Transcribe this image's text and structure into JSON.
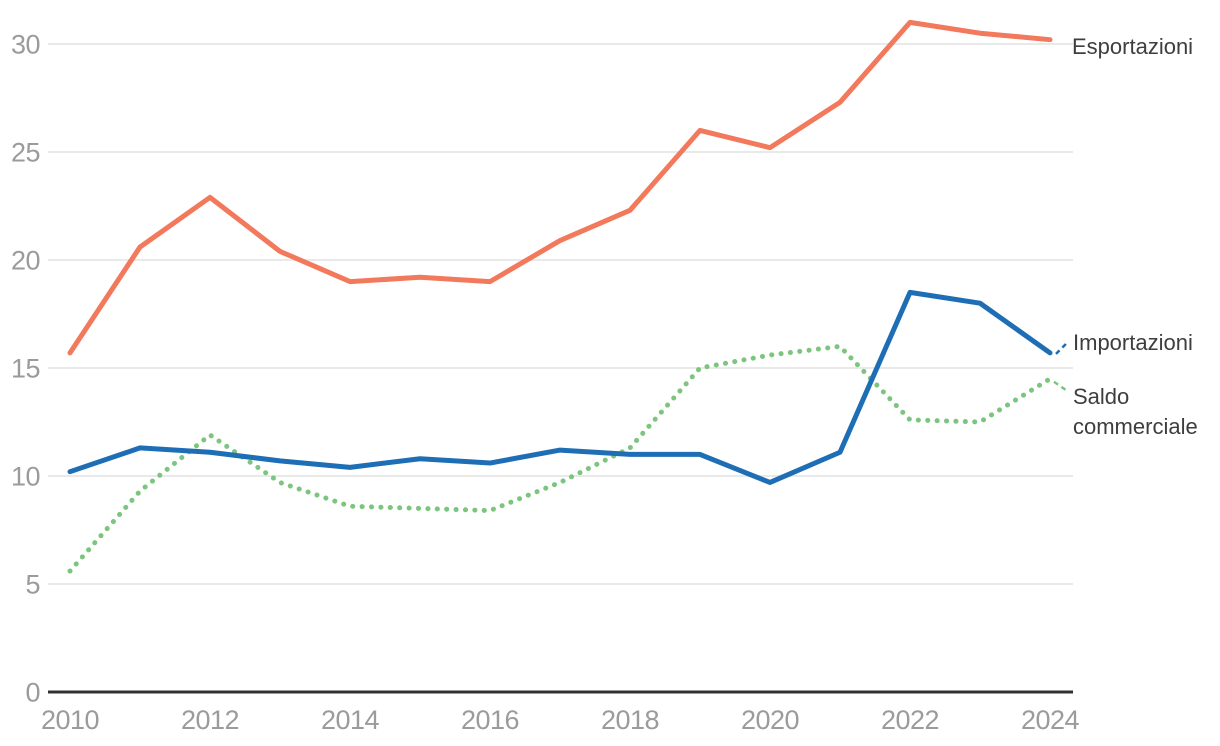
{
  "chart_data": {
    "type": "line",
    "title": "",
    "xlabel": "",
    "ylabel": "",
    "x": [
      2010,
      2011,
      2012,
      2013,
      2014,
      2015,
      2016,
      2017,
      2018,
      2019,
      2020,
      2021,
      2022,
      2023,
      2024
    ],
    "xtick_labels": [
      "2010",
      "2012",
      "2014",
      "2016",
      "2018",
      "2020",
      "2022",
      "2024"
    ],
    "xticks": [
      2010,
      2012,
      2014,
      2016,
      2018,
      2020,
      2022,
      2024
    ],
    "ytick_labels": [
      "0",
      "5",
      "10",
      "15",
      "20",
      "25",
      "30"
    ],
    "yticks": [
      0,
      5,
      10,
      15,
      20,
      25,
      30
    ],
    "ylim": [
      0,
      31.5
    ],
    "grid": "horizontal",
    "legend_position": "right-inline-labels",
    "series": [
      {
        "name": "Esportazioni",
        "style": "solid",
        "color": "#f2795b",
        "values": [
          15.7,
          20.6,
          22.9,
          20.4,
          19.0,
          19.2,
          19.0,
          20.9,
          22.3,
          26.0,
          25.2,
          27.3,
          31.0,
          30.5,
          30.2
        ]
      },
      {
        "name": "Importazioni",
        "style": "solid",
        "color": "#1e6eb5",
        "values": [
          10.2,
          11.3,
          11.1,
          10.7,
          10.4,
          10.8,
          10.6,
          11.2,
          11.0,
          11.0,
          9.7,
          11.1,
          18.5,
          18.0,
          15.7
        ]
      },
      {
        "name": "Saldo commerciale",
        "style": "dotted",
        "color": "#7cc57e",
        "values": [
          5.6,
          9.3,
          11.9,
          9.7,
          8.6,
          8.5,
          8.4,
          9.7,
          11.3,
          15.0,
          15.6,
          16.0,
          12.6,
          12.5,
          14.5
        ]
      }
    ],
    "colors": {
      "gridline": "#e9e9e9",
      "axis_line": "#303030",
      "tick_label": "#9b9b9b",
      "series_label": "#3e3e3e",
      "background": "#ffffff"
    }
  }
}
